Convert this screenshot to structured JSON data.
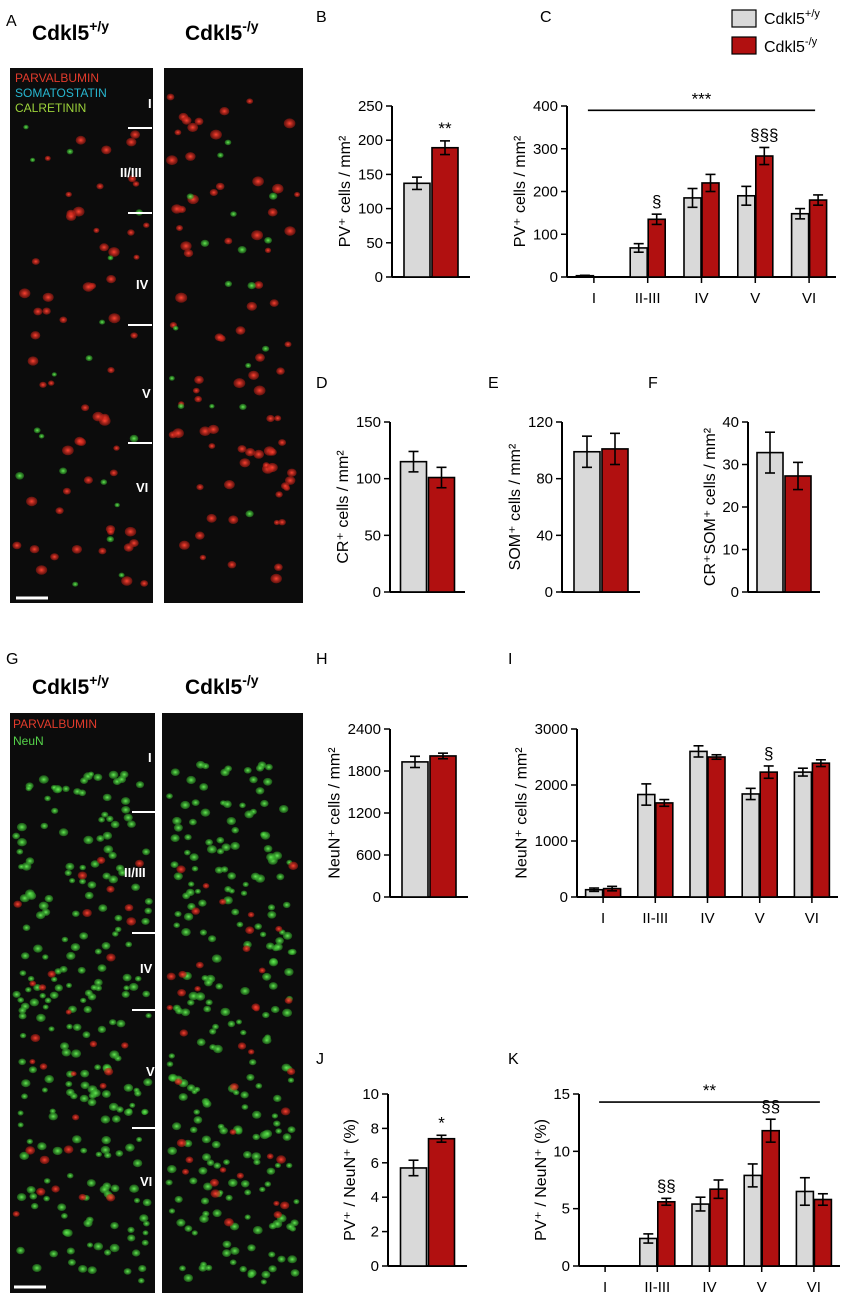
{
  "colors": {
    "wt": "#d9d9d9",
    "ko": "#b11010"
  },
  "legend": [
    {
      "name": "Cdkl5",
      "sup": "+/y",
      "key": "wt"
    },
    {
      "name": "Cdkl5",
      "sup": "-/y",
      "key": "ko"
    }
  ],
  "micrographs": [
    {
      "label": "A",
      "wt_title": "Cdkl5",
      "wt_sup": "+/y",
      "ko_title": "Cdkl5",
      "ko_sup": "-/y",
      "markers": [
        {
          "text": "PARVALBUMIN",
          "color": "#e23b2c"
        },
        {
          "text": "SOMATOSTATIN",
          "color": "#27b6cf"
        },
        {
          "text": "CALRETININ",
          "color": "#9cd23a"
        }
      ],
      "layers": [
        "I",
        "II/III",
        "IV",
        "V",
        "VI"
      ]
    },
    {
      "label": "G",
      "wt_title": "Cdkl5",
      "wt_sup": "+/y",
      "ko_title": "Cdkl5",
      "ko_sup": "-/y",
      "markers": [
        {
          "text": "PARVALBUMIN",
          "color": "#e23b2c"
        },
        {
          "text": "NeuN",
          "color": "#56d24a"
        }
      ],
      "layers": [
        "I",
        "II/III",
        "IV",
        "V",
        "VI"
      ]
    }
  ],
  "chart_data": [
    {
      "label": "B",
      "type": "bar",
      "categories": [
        ""
      ],
      "ylabel": "PV⁺ cells / mm²",
      "ylim": [
        0,
        250
      ],
      "yticks": [
        0,
        50,
        100,
        150,
        200,
        250
      ],
      "series": [
        {
          "name": "Cdkl5 +/y",
          "values": [
            137
          ],
          "err": [
            9
          ]
        },
        {
          "name": "Cdkl5 -/y",
          "values": [
            189
          ],
          "err": [
            10
          ]
        }
      ],
      "annotations": [
        {
          "text": "**",
          "category": 0,
          "series": 1
        }
      ]
    },
    {
      "label": "C",
      "type": "bar",
      "categories": [
        "I",
        "II-III",
        "IV",
        "V",
        "VI"
      ],
      "ylabel": "PV⁺ cells / mm²",
      "ylim": [
        0,
        400
      ],
      "yticks": [
        0,
        100,
        200,
        300,
        400
      ],
      "series": [
        {
          "name": "Cdkl5 +/y",
          "values": [
            3,
            68,
            185,
            190,
            148
          ],
          "err": [
            1,
            10,
            22,
            22,
            12
          ]
        },
        {
          "name": "Cdkl5 -/y",
          "values": [
            0,
            135,
            220,
            283,
            180
          ],
          "err": [
            0,
            12,
            20,
            20,
            12
          ]
        }
      ],
      "annotations": [
        {
          "text": "§",
          "category": 1,
          "series": 1
        },
        {
          "text": "§§§",
          "category": 3,
          "series": 1
        }
      ],
      "bracket": {
        "text": "***",
        "value": 390
      }
    },
    {
      "label": "D",
      "type": "bar",
      "categories": [
        ""
      ],
      "ylabel": "CR⁺ cells / mm²",
      "ylim": [
        0,
        150
      ],
      "yticks": [
        0,
        50,
        100,
        150
      ],
      "series": [
        {
          "name": "Cdkl5 +/y",
          "values": [
            115
          ],
          "err": [
            9
          ]
        },
        {
          "name": "Cdkl5 -/y",
          "values": [
            101
          ],
          "err": [
            9
          ]
        }
      ]
    },
    {
      "label": "E",
      "type": "bar",
      "categories": [
        ""
      ],
      "ylabel": "SOM⁺ cells / mm²",
      "ylim": [
        0,
        120
      ],
      "yticks": [
        0,
        40,
        80,
        120
      ],
      "series": [
        {
          "name": "Cdkl5 +/y",
          "values": [
            99
          ],
          "err": [
            11
          ]
        },
        {
          "name": "Cdkl5 -/y",
          "values": [
            101
          ],
          "err": [
            11
          ]
        }
      ]
    },
    {
      "label": "F",
      "type": "bar",
      "categories": [
        ""
      ],
      "ylabel": "CR⁺SOM⁺ cells / mm²",
      "ylim": [
        0,
        40
      ],
      "yticks": [
        0,
        10,
        20,
        30,
        40
      ],
      "series": [
        {
          "name": "Cdkl5 +/y",
          "values": [
            32.8
          ],
          "err": [
            4.8
          ]
        },
        {
          "name": "Cdkl5 -/y",
          "values": [
            27.3
          ],
          "err": [
            3.2
          ]
        }
      ]
    },
    {
      "label": "H",
      "type": "bar",
      "categories": [
        ""
      ],
      "ylabel": "NeuN⁺ cells / mm²",
      "ylim": [
        0,
        2400
      ],
      "yticks": [
        0,
        600,
        1200,
        1800,
        2400
      ],
      "series": [
        {
          "name": "Cdkl5 +/y",
          "values": [
            1930
          ],
          "err": [
            80
          ]
        },
        {
          "name": "Cdkl5 -/y",
          "values": [
            2015
          ],
          "err": [
            40
          ]
        }
      ]
    },
    {
      "label": "I",
      "type": "bar",
      "categories": [
        "I",
        "II-III",
        "IV",
        "V",
        "VI"
      ],
      "ylabel": "NeuN⁺ cells / mm²",
      "ylim": [
        0,
        3000
      ],
      "yticks": [
        0,
        1000,
        2000,
        3000
      ],
      "series": [
        {
          "name": "Cdkl5 +/y",
          "values": [
            130,
            1830,
            2600,
            1840,
            2230
          ],
          "err": [
            30,
            190,
            100,
            100,
            70
          ]
        },
        {
          "name": "Cdkl5 -/y",
          "values": [
            150,
            1680,
            2500,
            2230,
            2390
          ],
          "err": [
            40,
            60,
            40,
            110,
            60
          ]
        }
      ],
      "annotations": [
        {
          "text": "§",
          "category": 3,
          "series": 1
        }
      ]
    },
    {
      "label": "J",
      "type": "bar",
      "categories": [
        ""
      ],
      "ylabel": "PV⁺ / NeuN⁺ (%)",
      "ylim": [
        0,
        10
      ],
      "yticks": [
        0,
        2,
        4,
        6,
        8,
        10
      ],
      "series": [
        {
          "name": "Cdkl5 +/y",
          "values": [
            5.7
          ],
          "err": [
            0.45
          ]
        },
        {
          "name": "Cdkl5 -/y",
          "values": [
            7.4
          ],
          "err": [
            0.2
          ]
        }
      ],
      "annotations": [
        {
          "text": "*",
          "category": 0,
          "series": 1
        }
      ]
    },
    {
      "label": "K",
      "type": "bar",
      "categories": [
        "I",
        "II-III",
        "IV",
        "V",
        "VI"
      ],
      "ylabel": "PV⁺ / NeuN⁺ (%)",
      "ylim": [
        0,
        15
      ],
      "yticks": [
        0,
        5,
        10,
        15
      ],
      "series": [
        {
          "name": "Cdkl5 +/y",
          "values": [
            0,
            2.4,
            5.4,
            7.9,
            6.5
          ],
          "err": [
            0,
            0.4,
            0.6,
            1.0,
            1.2
          ]
        },
        {
          "name": "Cdkl5 -/y",
          "values": [
            0,
            5.6,
            6.7,
            11.8,
            5.8
          ],
          "err": [
            0,
            0.3,
            0.8,
            1.0,
            0.5
          ]
        }
      ],
      "annotations": [
        {
          "text": "§§",
          "category": 1,
          "series": 1
        },
        {
          "text": "§§",
          "category": 3,
          "series": 1
        }
      ],
      "bracket": {
        "text": "**",
        "value": 14.3
      }
    }
  ]
}
